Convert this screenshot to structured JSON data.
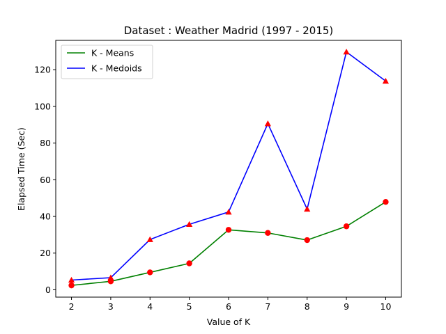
{
  "chart_data": {
    "type": "line",
    "title": "Dataset : Weather Madrid (1997 - 2015)",
    "xlabel": "Value of K",
    "ylabel": "Elapsed Time (Sec)",
    "x": [
      2,
      3,
      4,
      5,
      6,
      7,
      8,
      9,
      10
    ],
    "xlim": [
      1.6,
      10.4
    ],
    "ylim": [
      -4.0,
      136.0
    ],
    "xticks": [
      "2",
      "3",
      "4",
      "5",
      "6",
      "7",
      "8",
      "9",
      "10"
    ],
    "yticks": [
      "0",
      "20",
      "40",
      "60",
      "80",
      "100",
      "120"
    ],
    "legend_position": "upper-left",
    "series": [
      {
        "name": "K - Means",
        "color": "#008000",
        "marker": "circle",
        "marker_color": "#ff0000",
        "values": [
          2.4,
          4.6,
          9.5,
          14.4,
          32.7,
          31.0,
          27.1,
          34.6,
          47.9
        ]
      },
      {
        "name": "K - Medoids",
        "color": "#0000ff",
        "marker": "triangle",
        "marker_color": "#ff0000",
        "values": [
          5.3,
          6.6,
          27.4,
          35.7,
          42.4,
          90.6,
          44.0,
          129.7,
          113.8
        ]
      }
    ]
  }
}
